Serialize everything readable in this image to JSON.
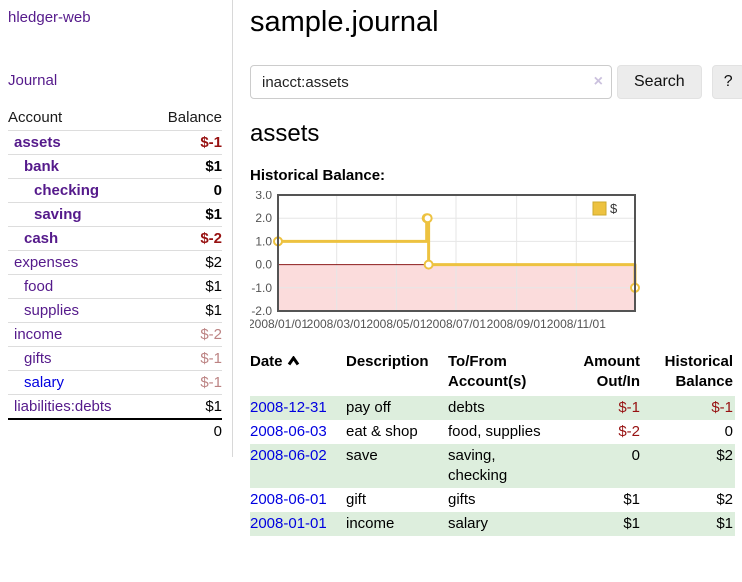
{
  "app": {
    "brand": "hledger-web",
    "nav": {
      "journal": "Journal"
    }
  },
  "sidebar": {
    "columns": {
      "account": "Account",
      "balance": "Balance"
    },
    "rows": [
      {
        "name": "assets",
        "indent": 1,
        "bold": true,
        "link": "purple",
        "balance": "$-1",
        "balance_class": "neg"
      },
      {
        "name": "bank",
        "indent": 2,
        "bold": true,
        "link": "purple",
        "balance": "$1",
        "balance_class": ""
      },
      {
        "name": "checking",
        "indent": 3,
        "bold": true,
        "link": "purple",
        "balance": "0",
        "balance_class": ""
      },
      {
        "name": "saving",
        "indent": 3,
        "bold": true,
        "link": "purple",
        "balance": "$1",
        "balance_class": ""
      },
      {
        "name": "cash",
        "indent": 2,
        "bold": true,
        "link": "purple",
        "balance": "$-2",
        "balance_class": "neg"
      },
      {
        "name": "expenses",
        "indent": 1,
        "bold": false,
        "link": "purple",
        "balance": "$2",
        "balance_class": ""
      },
      {
        "name": "food",
        "indent": 2,
        "bold": false,
        "link": "purple",
        "balance": "$1",
        "balance_class": ""
      },
      {
        "name": "supplies",
        "indent": 2,
        "bold": false,
        "link": "purple",
        "balance": "$1",
        "balance_class": ""
      },
      {
        "name": "income",
        "indent": 1,
        "bold": false,
        "link": "purple",
        "balance": "$-2",
        "balance_class": "dim"
      },
      {
        "name": "gifts",
        "indent": 2,
        "bold": false,
        "link": "purple",
        "balance": "$-1",
        "balance_class": "dim"
      },
      {
        "name": "salary",
        "indent": 2,
        "bold": false,
        "link": "blue",
        "balance": "$-1",
        "balance_class": "dim"
      },
      {
        "name": "liabilities:debts",
        "indent": 1,
        "bold": false,
        "link": "purple",
        "balance": "$1",
        "balance_class": ""
      }
    ],
    "total": "0"
  },
  "header": {
    "title": "sample.journal"
  },
  "search": {
    "value": "inacct:assets",
    "clear": "×",
    "submit": "Search",
    "help": "?"
  },
  "section": {
    "title": "assets",
    "chart_label": "Historical Balance:"
  },
  "chart_data": {
    "type": "line",
    "style": "step-after",
    "title": "Historical Balance:",
    "series": [
      {
        "name": "$",
        "color": "#edc240",
        "points": [
          {
            "date": "2008-01-01",
            "value": 1
          },
          {
            "date": "2008-06-01",
            "value": 2
          },
          {
            "date": "2008-06-02",
            "value": 2
          },
          {
            "date": "2008-06-03",
            "value": 0
          },
          {
            "date": "2008-12-31",
            "value": -1
          }
        ]
      }
    ],
    "xlim": [
      "2008-01-01",
      "2008-12-31"
    ],
    "ylim": [
      -2,
      3
    ],
    "x_ticks": [
      "2008/01/01",
      "2008/03/01",
      "2008/05/01",
      "2008/07/01",
      "2008/09/01",
      "2008/11/01"
    ],
    "y_ticks": [
      "3.0",
      "2.0",
      "1.0",
      "0.0",
      "-1.0",
      "-2.0"
    ],
    "grid": true,
    "legend": {
      "label": "$",
      "position": "top-right"
    },
    "colors": {
      "negative_fill": "#fbdcdc",
      "zero_line": "#8b1a1a",
      "grid": "#e6e6e6",
      "border": "#545454",
      "marker_fill": "#ffffff",
      "tick_text": "#545454"
    }
  },
  "register": {
    "columns": {
      "date": "Date",
      "sort": "ascending",
      "description": "Description",
      "tofrom1": "To/From",
      "tofrom2": "Account(s)",
      "amount1": "Amount",
      "amount2": "Out/In",
      "balance1": "Historical",
      "balance2": "Balance"
    },
    "rows": [
      {
        "date": "2008-12-31",
        "description": "pay off",
        "accounts": "debts",
        "amount": "$-1",
        "amount_negative": true,
        "balance": "$-1",
        "balance_negative": true
      },
      {
        "date": "2008-06-03",
        "description": "eat & shop",
        "accounts": "food, supplies",
        "amount": "$-2",
        "amount_negative": true,
        "balance": "0",
        "balance_negative": false
      },
      {
        "date": "2008-06-02",
        "description": "save",
        "accounts": "saving, checking",
        "amount": "0",
        "amount_negative": false,
        "balance": "$2",
        "balance_negative": false
      },
      {
        "date": "2008-06-01",
        "description": "gift",
        "accounts": "gifts",
        "amount": "$1",
        "amount_negative": false,
        "balance": "$2",
        "balance_negative": false
      },
      {
        "date": "2008-01-01",
        "description": "income",
        "accounts": "salary",
        "amount": "$1",
        "amount_negative": false,
        "balance": "$1",
        "balance_negative": false
      }
    ]
  }
}
